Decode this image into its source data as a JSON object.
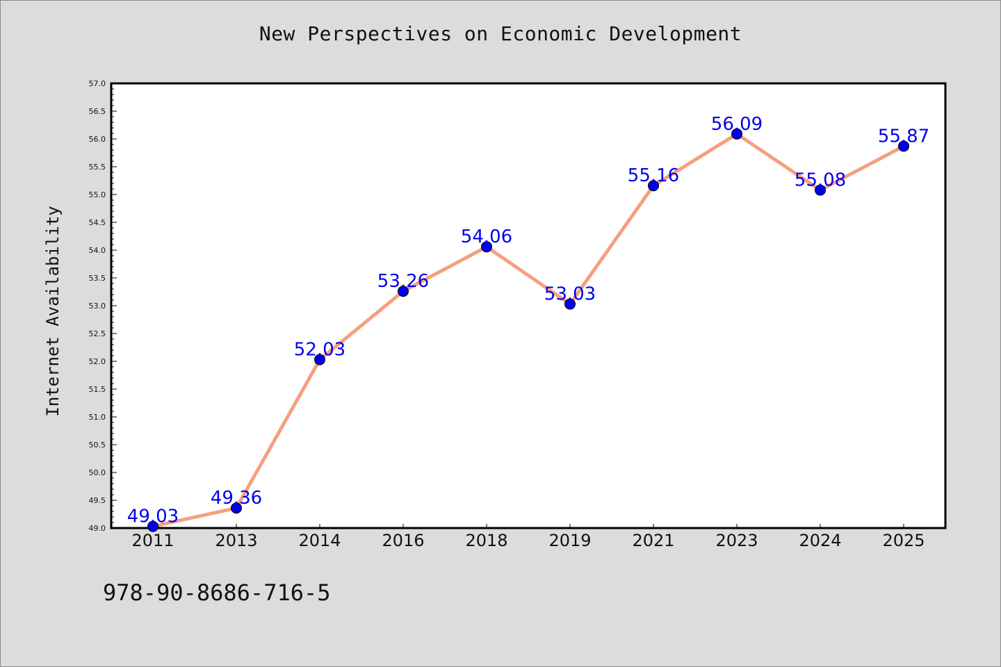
{
  "figure": {
    "title": "New Perspectives on Economic Development",
    "footer_text": "978-90-8686-716-5",
    "background_color": "#dcdcdc",
    "plot_background_color": "#ffffff"
  },
  "chart_data": {
    "type": "line",
    "title": "New Perspectives on Economic Development",
    "xlabel": "",
    "ylabel": "Internet Availability",
    "categories": [
      "2011",
      "2013",
      "2014",
      "2016",
      "2018",
      "2019",
      "2021",
      "2023",
      "2024",
      "2025"
    ],
    "series": [
      {
        "values": [
          49.03,
          49.36,
          52.03,
          53.26,
          54.06,
          53.03,
          55.16,
          56.09,
          55.08,
          55.87
        ],
        "labels": [
          "49.03",
          "49.36",
          "52.03",
          "53.26",
          "54.06",
          "53.03",
          "55.16",
          "56.09",
          "55.08",
          "55.87"
        ],
        "line_color": "#f4a07e",
        "marker_color": "#0000ee",
        "label_color": "#0000ee"
      }
    ],
    "ylim": [
      49.0,
      57.0
    ],
    "yticks": [
      "49.0",
      "49.5",
      "50.0",
      "50.5",
      "51.0",
      "51.5",
      "52.0",
      "52.5",
      "53.0",
      "53.5",
      "54.0",
      "54.5",
      "55.0",
      "55.5",
      "56.0",
      "56.5",
      "57.0"
    ],
    "grid": false,
    "legend": "none"
  }
}
